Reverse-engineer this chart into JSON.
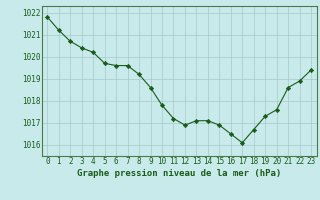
{
  "x": [
    0,
    1,
    2,
    3,
    4,
    5,
    6,
    7,
    8,
    9,
    10,
    11,
    12,
    13,
    14,
    15,
    16,
    17,
    18,
    19,
    20,
    21,
    22,
    23
  ],
  "y": [
    1021.8,
    1021.2,
    1020.7,
    1020.4,
    1020.2,
    1019.7,
    1019.6,
    1019.6,
    1019.2,
    1018.6,
    1017.8,
    1017.2,
    1016.9,
    1017.1,
    1017.1,
    1016.9,
    1016.5,
    1016.1,
    1016.7,
    1017.3,
    1017.6,
    1018.6,
    1018.9,
    1019.4
  ],
  "line_color": "#1a5c1a",
  "marker": "D",
  "marker_size": 2.2,
  "bg_color": "#c8eaea",
  "grid_color": "#a8c8c8",
  "xlabel": "Graphe pression niveau de la mer (hPa)",
  "xlabel_color": "#1a5c1a",
  "xlabel_fontsize": 6.5,
  "tick_color": "#1a5c1a",
  "tick_fontsize": 5.5,
  "ylim": [
    1015.5,
    1022.3
  ],
  "yticks": [
    1016,
    1017,
    1018,
    1019,
    1020,
    1021,
    1022
  ],
  "xticks": [
    0,
    1,
    2,
    3,
    4,
    5,
    6,
    7,
    8,
    9,
    10,
    11,
    12,
    13,
    14,
    15,
    16,
    17,
    18,
    19,
    20,
    21,
    22,
    23
  ]
}
